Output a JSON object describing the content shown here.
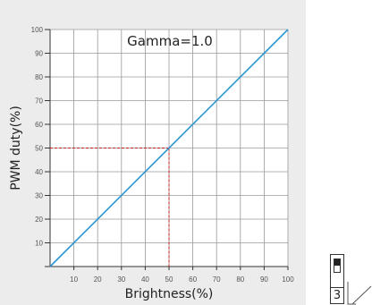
{
  "chart_data": {
    "type": "line",
    "annotation": "Gamma=1.0",
    "xlabel": "Brightness(%)",
    "ylabel": "PWM duty(%)",
    "xlim": [
      0,
      100
    ],
    "ylim": [
      0,
      100
    ],
    "xticks": [
      10,
      20,
      30,
      40,
      50,
      60,
      70,
      80,
      90,
      100
    ],
    "yticks": [
      10,
      20,
      30,
      40,
      50,
      60,
      70,
      80,
      90,
      100
    ],
    "grid": true,
    "series": [
      {
        "color": "#2a97d4",
        "x": [
          0,
          100
        ],
        "y": [
          0,
          100
        ]
      }
    ],
    "reference_point": {
      "x": 50,
      "y": 50,
      "color": "#c81e1e"
    }
  },
  "widget": {
    "switch_label": "3"
  },
  "colors": {
    "panel": "#ececec",
    "plot_bg": "#ffffff",
    "grid": "#9a9a9a",
    "axis": "#333333"
  }
}
